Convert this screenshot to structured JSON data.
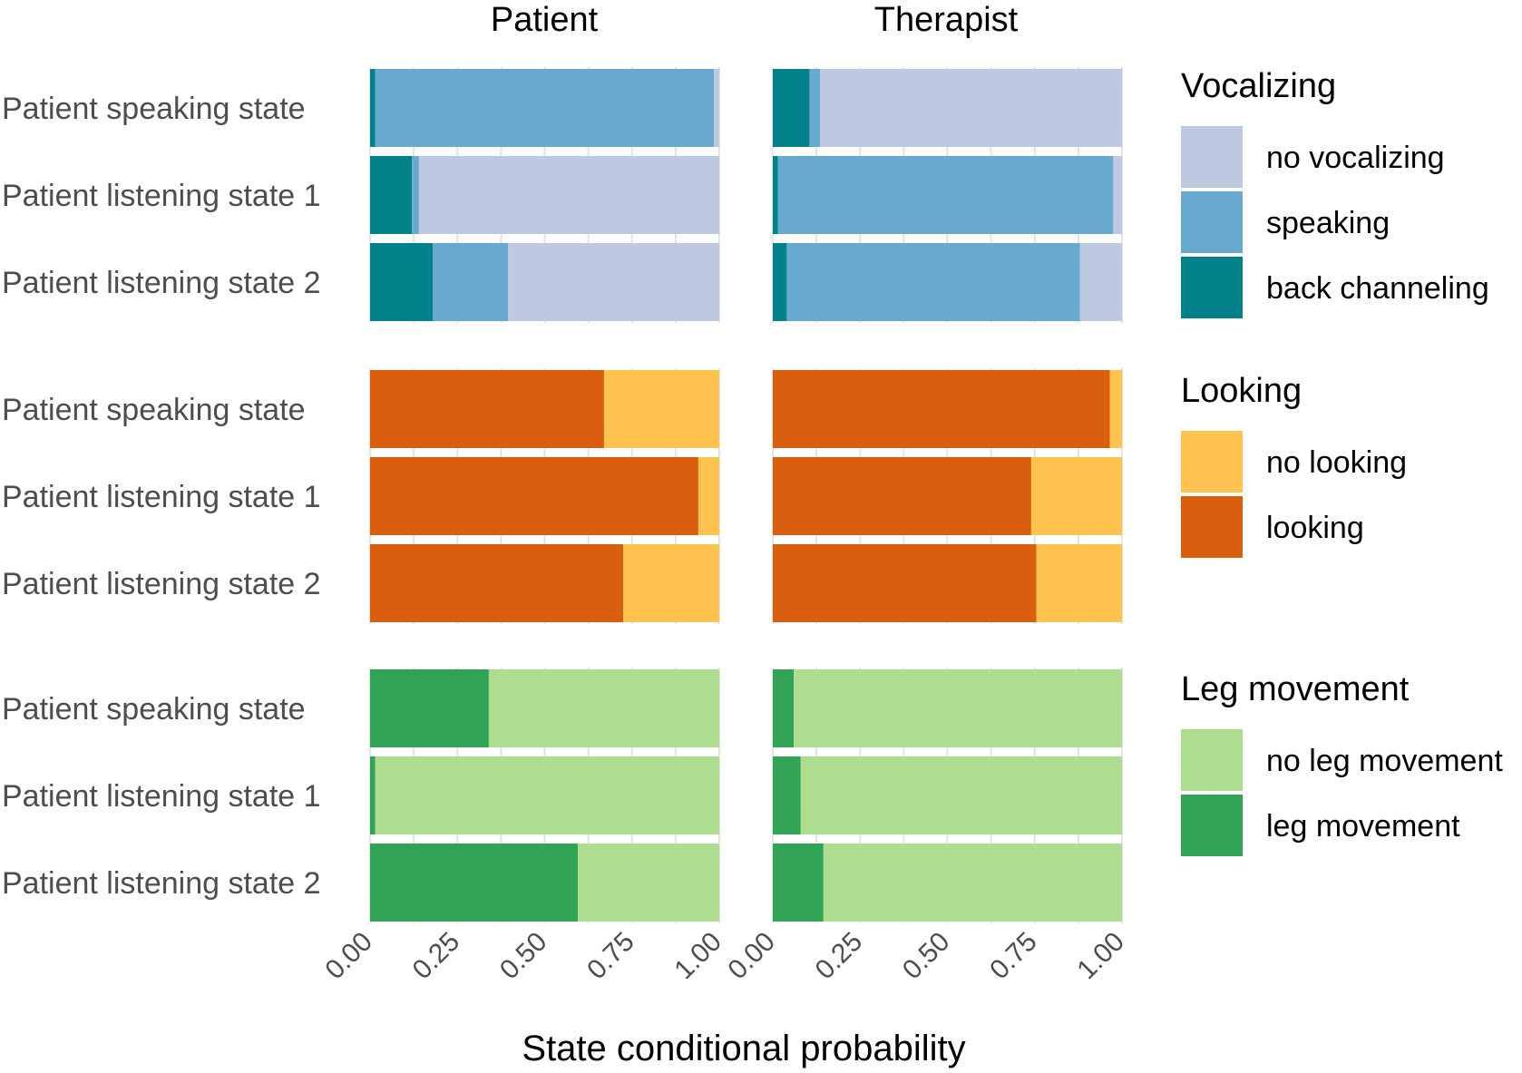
{
  "chart_data": {
    "type": "bar",
    "orientation": "horizontal",
    "stacked": true,
    "columns": [
      "Patient",
      "Therapist"
    ],
    "xlabel": "State conditional probability",
    "xlim": [
      0,
      1
    ],
    "xticks": [
      "0.00",
      "0.25",
      "0.50",
      "0.75",
      "1.00"
    ],
    "grid": true,
    "legend_position": "right",
    "groups": [
      {
        "legend_title": "Vocalizing",
        "legend": [
          {
            "label": "no vocalizing",
            "color": "#bdc9e1"
          },
          {
            "label": "speaking",
            "color": "#67a9cf"
          },
          {
            "label": "back channeling",
            "color": "#02818a"
          }
        ],
        "stack_order": [
          "back channeling",
          "speaking",
          "no vocalizing"
        ],
        "rows": [
          "Patient speaking state",
          "Patient listening state 1",
          "Patient listening state 2"
        ],
        "values": {
          "Patient": [
            {
              "back channeling": 0.015,
              "speaking": 0.97,
              "no vocalizing": 0.015
            },
            {
              "back channeling": 0.12,
              "speaking": 0.02,
              "no vocalizing": 0.86
            },
            {
              "back channeling": 0.18,
              "speaking": 0.215,
              "no vocalizing": 0.605
            }
          ],
          "Therapist": [
            {
              "back channeling": 0.105,
              "speaking": 0.03,
              "no vocalizing": 0.865
            },
            {
              "back channeling": 0.015,
              "speaking": 0.96,
              "no vocalizing": 0.025
            },
            {
              "back channeling": 0.04,
              "speaking": 0.84,
              "no vocalizing": 0.12
            }
          ]
        }
      },
      {
        "legend_title": "Looking",
        "legend": [
          {
            "label": "no looking",
            "color": "#fec44f"
          },
          {
            "label": "looking",
            "color": "#d95f0e"
          }
        ],
        "stack_order": [
          "looking",
          "no looking"
        ],
        "rows": [
          "Patient speaking state",
          "Patient listening state 1",
          "Patient listening state 2"
        ],
        "values": {
          "Patient": [
            {
              "looking": 0.67,
              "no looking": 0.33
            },
            {
              "looking": 0.94,
              "no looking": 0.06
            },
            {
              "looking": 0.725,
              "no looking": 0.275
            }
          ],
          "Therapist": [
            {
              "looking": 0.965,
              "no looking": 0.035
            },
            {
              "looking": 0.74,
              "no looking": 0.26
            },
            {
              "looking": 0.755,
              "no looking": 0.245
            }
          ]
        }
      },
      {
        "legend_title": "Leg movement",
        "legend": [
          {
            "label": "no leg movement",
            "color": "#addd8e"
          },
          {
            "label": "leg movement",
            "color": "#31a354"
          }
        ],
        "stack_order": [
          "leg movement",
          "no leg movement"
        ],
        "rows": [
          "Patient speaking state",
          "Patient listening state 1",
          "Patient listening state 2"
        ],
        "values": {
          "Patient": [
            {
              "leg movement": 0.34,
              "no leg movement": 0.66
            },
            {
              "leg movement": 0.015,
              "no leg movement": 0.985
            },
            {
              "leg movement": 0.595,
              "no leg movement": 0.405
            }
          ],
          "Therapist": [
            {
              "leg movement": 0.06,
              "no leg movement": 0.94
            },
            {
              "leg movement": 0.08,
              "no leg movement": 0.92
            },
            {
              "leg movement": 0.145,
              "no leg movement": 0.855
            }
          ]
        }
      }
    ]
  }
}
